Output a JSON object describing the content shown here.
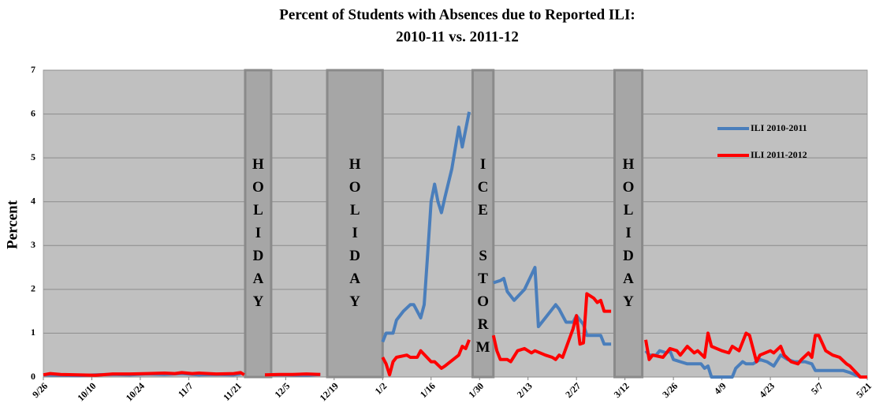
{
  "chart_data": {
    "type": "line",
    "title": "Percent of Students with Absences due to Reported ILI:",
    "subtitle": "2010-11 vs. 2011-12",
    "y_label": "Percent",
    "xlim": [
      0,
      238
    ],
    "ylim": [
      0,
      7
    ],
    "yticks": [
      0,
      1,
      2,
      3,
      4,
      5,
      6,
      7
    ],
    "xticks": [
      {
        "value": 0,
        "label": "9/26"
      },
      {
        "value": 14,
        "label": "10/10"
      },
      {
        "value": 28,
        "label": "10/24"
      },
      {
        "value": 42,
        "label": "11/7"
      },
      {
        "value": 56,
        "label": "11/21"
      },
      {
        "value": 70,
        "label": "12/5"
      },
      {
        "value": 84,
        "label": "12/19"
      },
      {
        "value": 98,
        "label": "1/2"
      },
      {
        "value": 112,
        "label": "1/16"
      },
      {
        "value": 126,
        "label": "1/30"
      },
      {
        "value": 140,
        "label": "2/13"
      },
      {
        "value": 154,
        "label": "2/27"
      },
      {
        "value": 168,
        "label": "3/12"
      },
      {
        "value": 182,
        "label": "3/26"
      },
      {
        "value": 196,
        "label": "4/9"
      },
      {
        "value": 210,
        "label": "4/23"
      },
      {
        "value": 224,
        "label": "5/7"
      },
      {
        "value": 238,
        "label": "5/21"
      }
    ],
    "grid": true,
    "legend": "upper right",
    "annotations": [
      {
        "text": "HOLIDAY",
        "start": 58.3,
        "end": 65.8
      },
      {
        "text": "HOLIDAY",
        "start": 82,
        "end": 98
      },
      {
        "text": "ICE STORM",
        "start": 124,
        "end": 130
      },
      {
        "text": "HOLIDAY",
        "start": 165,
        "end": 173
      }
    ],
    "series": [
      {
        "name": "ILI 2010-2011",
        "color": "#4a7ebb",
        "x": [
          0,
          5,
          10,
          15,
          20,
          25,
          30,
          35,
          40,
          45,
          50,
          55,
          57,
          58,
          66,
          70,
          76,
          80,
          90,
          98,
          99,
          101,
          102,
          104,
          106,
          107,
          108,
          109,
          110,
          111,
          112,
          113,
          114,
          115,
          116,
          118,
          120,
          121,
          123,
          124,
          130,
          132,
          133,
          134,
          136,
          139,
          142,
          143,
          145,
          148,
          149,
          151,
          153,
          154,
          156,
          157,
          159,
          161,
          162,
          164,
          165,
          174,
          175,
          177,
          178,
          180,
          181,
          182,
          184,
          186,
          188,
          190,
          191,
          192,
          193,
          195,
          199,
          200,
          202,
          203,
          205,
          207,
          209,
          211,
          213,
          215,
          217,
          220,
          222,
          223,
          225,
          231,
          233,
          236
        ],
        "values": [
          0.05,
          0.04,
          0.03,
          0.05,
          0.06,
          0.05,
          0.07,
          0.06,
          0.08,
          0.05,
          0.06,
          0.05,
          0.07,
          null,
          0.05,
          0.05,
          0.04,
          0.06,
          null,
          0.8,
          1.0,
          1.0,
          1.3,
          1.5,
          1.65,
          1.65,
          1.5,
          1.35,
          1.65,
          2.8,
          4.0,
          4.4,
          4.0,
          3.75,
          4.1,
          4.75,
          5.7,
          5.25,
          6.05,
          null,
          2.15,
          2.2,
          2.25,
          1.95,
          1.75,
          2.0,
          2.5,
          1.15,
          1.35,
          1.65,
          1.55,
          1.25,
          1.25,
          1.4,
          1.2,
          0.95,
          0.95,
          0.95,
          0.75,
          0.75,
          null,
          0.6,
          0.5,
          0.5,
          0.6,
          0.55,
          0.6,
          0.4,
          0.35,
          0.3,
          0.3,
          0.3,
          0.2,
          0.25,
          0,
          0,
          0,
          0.2,
          0.35,
          0.3,
          0.3,
          0.4,
          0.35,
          0.25,
          0.5,
          0.4,
          0.35,
          0.35,
          0.3,
          0.15,
          0.15,
          0.15,
          0.1,
          0
        ]
      },
      {
        "name": "ILI 2011-2012",
        "color": "#ff0000",
        "x": [
          0,
          2,
          5,
          10,
          15,
          20,
          25,
          30,
          35,
          38,
          40,
          43,
          45,
          50,
          55,
          57,
          58,
          59,
          64,
          68,
          72,
          76,
          80,
          90,
          98,
          99,
          100,
          101,
          102,
          105,
          106,
          108,
          109,
          112,
          113,
          115,
          116,
          120,
          121,
          122,
          123,
          125,
          130,
          131,
          132,
          134,
          135,
          137,
          139,
          141,
          142,
          145,
          147,
          148,
          149,
          150,
          153,
          154,
          155,
          156,
          157,
          159,
          160,
          161,
          162,
          164,
          165,
          174,
          175,
          176,
          179,
          181,
          183,
          184,
          186,
          188,
          189,
          191,
          192,
          193,
          196,
          198,
          199,
          201,
          203,
          204,
          206,
          207,
          210,
          211,
          213,
          214,
          216,
          218,
          219,
          221,
          222,
          223,
          224,
          226,
          228,
          230,
          232,
          233,
          236,
          238
        ],
        "values": [
          0.05,
          0.08,
          0.06,
          0.05,
          0.04,
          0.07,
          0.07,
          0.08,
          0.09,
          0.08,
          0.1,
          0.08,
          0.09,
          0.07,
          0.08,
          0.1,
          0.05,
          null,
          0.05,
          0.06,
          0.06,
          0.07,
          0.06,
          null,
          0.45,
          0.3,
          0.05,
          0.35,
          0.45,
          0.5,
          0.45,
          0.45,
          0.6,
          0.35,
          0.35,
          0.2,
          0.25,
          0.5,
          0.7,
          0.65,
          0.85,
          null,
          0.95,
          0.6,
          0.4,
          0.4,
          0.35,
          0.6,
          0.65,
          0.55,
          0.6,
          0.5,
          0.45,
          0.4,
          0.5,
          0.45,
          1.1,
          1.4,
          0.75,
          0.78,
          1.9,
          1.8,
          1.7,
          1.75,
          1.5,
          1.5,
          null,
          0.85,
          0.4,
          0.5,
          0.45,
          0.65,
          0.6,
          0.5,
          0.7,
          0.55,
          0.6,
          0.45,
          1.0,
          0.7,
          0.6,
          0.55,
          0.7,
          0.6,
          1.0,
          0.95,
          0.35,
          0.5,
          0.6,
          0.55,
          0.7,
          0.5,
          0.35,
          0.3,
          0.4,
          0.55,
          0.45,
          0.95,
          0.95,
          0.6,
          0.5,
          0.45,
          0.3,
          0.25,
          0,
          0
        ]
      }
    ]
  }
}
